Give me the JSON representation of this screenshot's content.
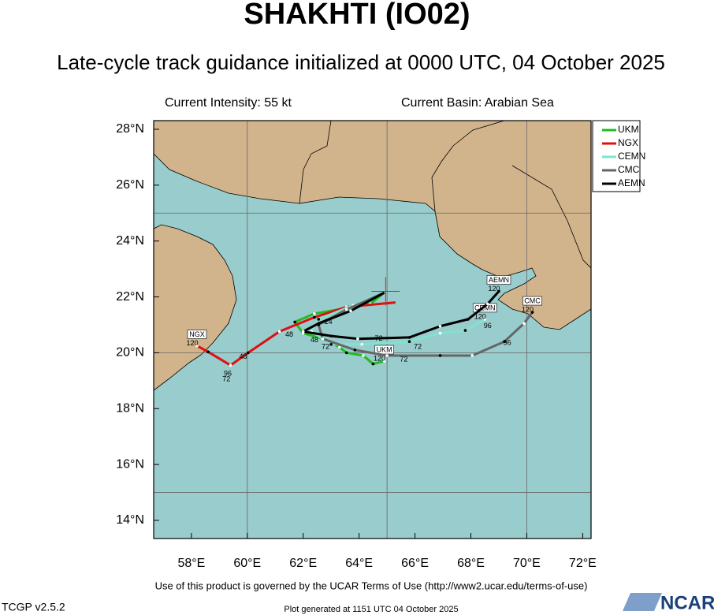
{
  "chart_data": {
    "type": "track-map",
    "title": "SHAKHTI (IO02)",
    "subtitle": "Late-cycle track guidance initialized at 0000 UTC, 04 October 2025",
    "intensity": "Current Intensity: 55 kt",
    "basin": "Current Basin: Arabian Sea",
    "xlim": [
      56.65,
      72.3
    ],
    "ylim": [
      13.35,
      28.31
    ],
    "xticks": [
      {
        "value": 58,
        "label": "58°E"
      },
      {
        "value": 60,
        "label": "60°E"
      },
      {
        "value": 62,
        "label": "62°E"
      },
      {
        "value": 64,
        "label": "64°E"
      },
      {
        "value": 66,
        "label": "66°E"
      },
      {
        "value": 68,
        "label": "68°E"
      },
      {
        "value": 70,
        "label": "70°E"
      },
      {
        "value": 72,
        "label": "72°E"
      }
    ],
    "yticks": [
      {
        "value": 14,
        "label": "14°N"
      },
      {
        "value": 16,
        "label": "16°N"
      },
      {
        "value": 18,
        "label": "18°N"
      },
      {
        "value": 20,
        "label": "20°N"
      },
      {
        "value": 22,
        "label": "22°N"
      },
      {
        "value": 24,
        "label": "24°N"
      },
      {
        "value": 26,
        "label": "26°N"
      },
      {
        "value": 28,
        "label": "28°N"
      }
    ],
    "grid_lon": [
      60,
      65,
      70
    ],
    "grid_lat": [
      15,
      20,
      25
    ],
    "current_position": {
      "lon": 64.95,
      "lat": 22.2
    },
    "series": [
      {
        "name": "UKM",
        "color": "#22bb22",
        "end_label": "120",
        "x": [
          64.9,
          64.4,
          63.55,
          62.4,
          61.7,
          62.0,
          62.7,
          63.3,
          63.55,
          64.15,
          64.5,
          64.9
        ],
        "values": [
          22.15,
          21.75,
          21.6,
          21.4,
          21.1,
          20.7,
          20.5,
          20.2,
          20.0,
          19.9,
          19.6,
          19.7
        ]
      },
      {
        "name": "NGX",
        "color": "#dd1111",
        "end_label": "120",
        "x": [
          65.3,
          63.55,
          62.4,
          61.15,
          60.03,
          59.4,
          58.6,
          58.2
        ],
        "values": [
          21.8,
          21.64,
          21.27,
          20.76,
          20.0,
          19.55,
          20.03,
          20.25
        ]
      },
      {
        "name": "CEMN",
        "color": "#7fe3cf",
        "end_label": "120",
        "x": [
          64.9,
          63.8,
          62.55,
          62.3,
          63.0,
          64.1,
          65.8,
          66.9,
          67.8,
          68.5
        ],
        "values": [
          22.15,
          21.7,
          21.2,
          20.76,
          20.3,
          20.3,
          20.4,
          20.7,
          20.8,
          21.2
        ]
      },
      {
        "name": "CMC",
        "color": "#666666",
        "end_label": "120",
        "x": [
          64.9,
          63.55,
          62.55,
          62.7,
          63.85,
          65.0,
          66.9,
          68.05,
          69.2,
          69.9,
          70.2
        ],
        "values": [
          22.15,
          21.55,
          21.0,
          20.5,
          20.1,
          19.9,
          19.9,
          19.9,
          20.4,
          21.05,
          21.45
        ]
      },
      {
        "name": "AEMN",
        "color": "#000000",
        "end_label": "120",
        "x": [
          64.9,
          63.7,
          62.55,
          62.0,
          63.0,
          63.95,
          65.8,
          66.9,
          67.9,
          68.6,
          69.0
        ],
        "values": [
          22.15,
          21.5,
          21.05,
          20.76,
          20.6,
          20.5,
          20.55,
          20.95,
          21.2,
          21.75,
          22.2
        ]
      }
    ],
    "hour_labels": [
      {
        "text": "48",
        "lon": 59.85,
        "lat": 19.85
      },
      {
        "text": "96",
        "lon": 59.3,
        "lat": 19.25
      },
      {
        "text": "72",
        "lon": 59.25,
        "lat": 19.05
      },
      {
        "text": "48",
        "lon": 61.5,
        "lat": 20.65
      },
      {
        "text": "24",
        "lon": 62.9,
        "lat": 21.1
      },
      {
        "text": "72",
        "lon": 64.7,
        "lat": 20.5
      },
      {
        "text": "72",
        "lon": 66.1,
        "lat": 20.2
      },
      {
        "text": "72",
        "lon": 65.6,
        "lat": 19.75
      },
      {
        "text": "96",
        "lon": 68.6,
        "lat": 20.95
      },
      {
        "text": "96",
        "lon": 69.3,
        "lat": 20.35
      },
      {
        "text": "72",
        "lon": 62.8,
        "lat": 20.2
      },
      {
        "text": "48",
        "lon": 62.4,
        "lat": 20.45
      }
    ],
    "footer": "Use of this product is governed by the UCAR Terms of Use (http://www2.ucar.edu/terms-of-use)",
    "version": "TCGP v2.5.2",
    "generated": "Plot generated at 1151 UTC   04 October 2025",
    "logo": "NCAR"
  }
}
